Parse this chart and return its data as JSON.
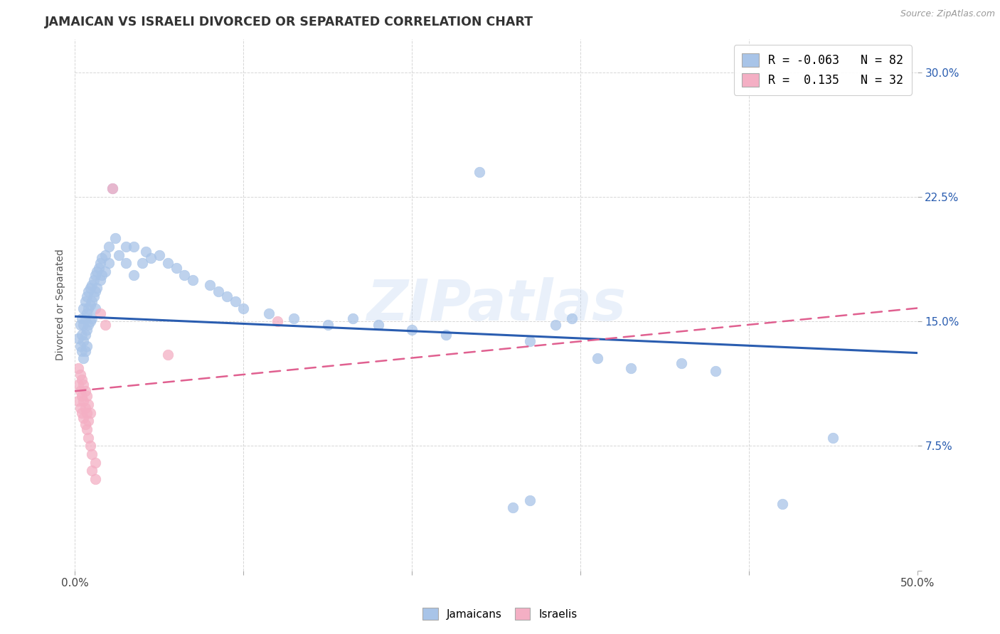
{
  "title": "JAMAICAN VS ISRAELI DIVORCED OR SEPARATED CORRELATION CHART",
  "source": "Source: ZipAtlas.com",
  "ylabel": "Divorced or Separated",
  "xlim": [
    0.0,
    0.5
  ],
  "ylim": [
    0.0,
    0.32
  ],
  "yticks": [
    0.0,
    0.075,
    0.15,
    0.225,
    0.3
  ],
  "ytick_labels_right": [
    "",
    "7.5%",
    "15.0%",
    "22.5%",
    "30.0%"
  ],
  "xticks": [
    0.0,
    0.1,
    0.2,
    0.3,
    0.4,
    0.5
  ],
  "xtick_labels": [
    "0.0%",
    "",
    "",
    "",
    "",
    "50.0%"
  ],
  "legend_r_blue": "-0.063",
  "legend_n_blue": "82",
  "legend_r_pink": " 0.135",
  "legend_n_pink": "32",
  "blue_color": "#a8c4e8",
  "pink_color": "#f4afc4",
  "line_blue": "#2a5db0",
  "line_pink": "#e06090",
  "watermark": "ZIPatlas",
  "blue_scatter": [
    [
      0.002,
      0.14
    ],
    [
      0.003,
      0.148
    ],
    [
      0.003,
      0.135
    ],
    [
      0.004,
      0.152
    ],
    [
      0.004,
      0.142
    ],
    [
      0.004,
      0.132
    ],
    [
      0.005,
      0.158
    ],
    [
      0.005,
      0.148
    ],
    [
      0.005,
      0.138
    ],
    [
      0.005,
      0.128
    ],
    [
      0.006,
      0.162
    ],
    [
      0.006,
      0.152
    ],
    [
      0.006,
      0.142
    ],
    [
      0.006,
      0.132
    ],
    [
      0.007,
      0.165
    ],
    [
      0.007,
      0.155
    ],
    [
      0.007,
      0.145
    ],
    [
      0.007,
      0.135
    ],
    [
      0.008,
      0.168
    ],
    [
      0.008,
      0.158
    ],
    [
      0.008,
      0.148
    ],
    [
      0.009,
      0.17
    ],
    [
      0.009,
      0.16
    ],
    [
      0.009,
      0.15
    ],
    [
      0.01,
      0.172
    ],
    [
      0.01,
      0.162
    ],
    [
      0.01,
      0.152
    ],
    [
      0.011,
      0.175
    ],
    [
      0.011,
      0.165
    ],
    [
      0.012,
      0.178
    ],
    [
      0.012,
      0.168
    ],
    [
      0.012,
      0.158
    ],
    [
      0.013,
      0.18
    ],
    [
      0.013,
      0.17
    ],
    [
      0.014,
      0.182
    ],
    [
      0.015,
      0.185
    ],
    [
      0.015,
      0.175
    ],
    [
      0.016,
      0.188
    ],
    [
      0.016,
      0.178
    ],
    [
      0.018,
      0.19
    ],
    [
      0.018,
      0.18
    ],
    [
      0.02,
      0.195
    ],
    [
      0.02,
      0.185
    ],
    [
      0.022,
      0.23
    ],
    [
      0.024,
      0.2
    ],
    [
      0.026,
      0.19
    ],
    [
      0.03,
      0.195
    ],
    [
      0.03,
      0.185
    ],
    [
      0.035,
      0.195
    ],
    [
      0.035,
      0.178
    ],
    [
      0.04,
      0.185
    ],
    [
      0.042,
      0.192
    ],
    [
      0.045,
      0.188
    ],
    [
      0.05,
      0.19
    ],
    [
      0.055,
      0.185
    ],
    [
      0.06,
      0.182
    ],
    [
      0.065,
      0.178
    ],
    [
      0.07,
      0.175
    ],
    [
      0.08,
      0.172
    ],
    [
      0.085,
      0.168
    ],
    [
      0.09,
      0.165
    ],
    [
      0.095,
      0.162
    ],
    [
      0.1,
      0.158
    ],
    [
      0.115,
      0.155
    ],
    [
      0.13,
      0.152
    ],
    [
      0.15,
      0.148
    ],
    [
      0.165,
      0.152
    ],
    [
      0.18,
      0.148
    ],
    [
      0.2,
      0.145
    ],
    [
      0.22,
      0.142
    ],
    [
      0.24,
      0.24
    ],
    [
      0.27,
      0.138
    ],
    [
      0.285,
      0.148
    ],
    [
      0.295,
      0.152
    ],
    [
      0.31,
      0.128
    ],
    [
      0.33,
      0.122
    ],
    [
      0.36,
      0.125
    ],
    [
      0.38,
      0.12
    ],
    [
      0.42,
      0.04
    ],
    [
      0.45,
      0.08
    ],
    [
      0.26,
      0.038
    ],
    [
      0.27,
      0.042
    ]
  ],
  "pink_scatter": [
    [
      0.002,
      0.122
    ],
    [
      0.002,
      0.112
    ],
    [
      0.002,
      0.102
    ],
    [
      0.003,
      0.118
    ],
    [
      0.003,
      0.108
    ],
    [
      0.003,
      0.098
    ],
    [
      0.004,
      0.115
    ],
    [
      0.004,
      0.105
    ],
    [
      0.004,
      0.095
    ],
    [
      0.005,
      0.112
    ],
    [
      0.005,
      0.102
    ],
    [
      0.005,
      0.092
    ],
    [
      0.006,
      0.108
    ],
    [
      0.006,
      0.098
    ],
    [
      0.006,
      0.088
    ],
    [
      0.007,
      0.105
    ],
    [
      0.007,
      0.095
    ],
    [
      0.007,
      0.085
    ],
    [
      0.008,
      0.1
    ],
    [
      0.008,
      0.09
    ],
    [
      0.008,
      0.08
    ],
    [
      0.009,
      0.095
    ],
    [
      0.009,
      0.075
    ],
    [
      0.01,
      0.07
    ],
    [
      0.01,
      0.06
    ],
    [
      0.012,
      0.065
    ],
    [
      0.012,
      0.055
    ],
    [
      0.015,
      0.155
    ],
    [
      0.018,
      0.148
    ],
    [
      0.022,
      0.23
    ],
    [
      0.055,
      0.13
    ],
    [
      0.12,
      0.15
    ]
  ],
  "blue_line_x": [
    0.0,
    0.5
  ],
  "blue_line_y": [
    0.153,
    0.131
  ],
  "pink_line_x": [
    0.0,
    0.5
  ],
  "pink_line_y": [
    0.108,
    0.158
  ]
}
